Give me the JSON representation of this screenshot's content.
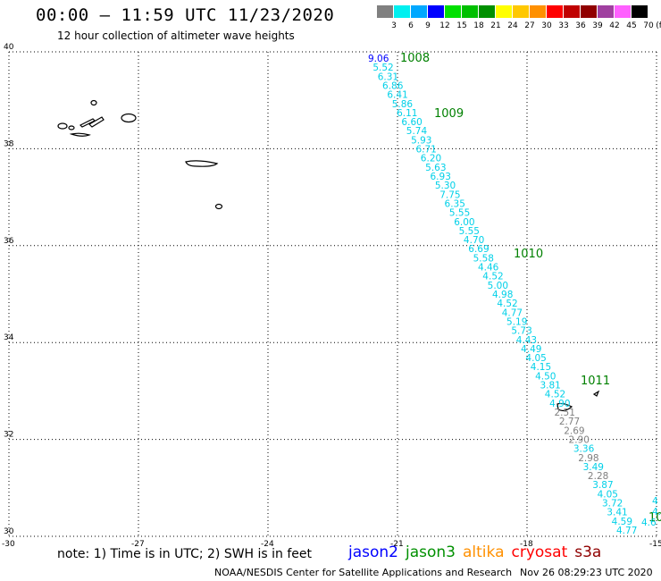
{
  "header": {
    "title": "00:00 – 11:59 UTC 11/23/2020",
    "subtitle": "12 hour collection of altimeter wave heights"
  },
  "colorbar": {
    "unit": "(ft)",
    "items": [
      {
        "label": "3",
        "color": "#808080"
      },
      {
        "label": "6",
        "color": "#00f0f0"
      },
      {
        "label": "9",
        "color": "#00a8ff"
      },
      {
        "label": "12",
        "color": "#0000ff"
      },
      {
        "label": "15",
        "color": "#00e000"
      },
      {
        "label": "18",
        "color": "#00c000"
      },
      {
        "label": "21",
        "color": "#009000"
      },
      {
        "label": "24",
        "color": "#ffff00"
      },
      {
        "label": "27",
        "color": "#ffc800"
      },
      {
        "label": "30",
        "color": "#ff9000"
      },
      {
        "label": "33",
        "color": "#ff0000"
      },
      {
        "label": "36",
        "color": "#c00000"
      },
      {
        "label": "39",
        "color": "#900000"
      },
      {
        "label": "42",
        "color": "#a040a0"
      },
      {
        "label": "45",
        "color": "#ff60ff"
      },
      {
        "label": "70",
        "color": "#000000"
      }
    ]
  },
  "map": {
    "lat_ticks": [
      "40",
      "38",
      "36",
      "34",
      "32",
      "30"
    ],
    "lon_ticks": [
      "-30",
      "-27",
      "-24",
      "-21",
      "-18",
      "-15"
    ],
    "pressure_labels": [
      "1008",
      "1009",
      "1010",
      "1011",
      "10"
    ],
    "wave_heights": [
      {
        "v": "9.06",
        "c": "#0000ff"
      },
      {
        "v": "5.52",
        "c": "#00d0e8"
      },
      {
        "v": "6.31",
        "c": "#00d0e8"
      },
      {
        "v": "6.86",
        "c": "#00d0e8"
      },
      {
        "v": "6.41",
        "c": "#00d0e8"
      },
      {
        "v": "5.86",
        "c": "#00d0e8"
      },
      {
        "v": "6.11",
        "c": "#00d0e8"
      },
      {
        "v": "6.60",
        "c": "#00d0e8"
      },
      {
        "v": "5.74",
        "c": "#00d0e8"
      },
      {
        "v": "5.93",
        "c": "#00d0e8"
      },
      {
        "v": "6.71",
        "c": "#00d0e8"
      },
      {
        "v": "6.20",
        "c": "#00d0e8"
      },
      {
        "v": "5.63",
        "c": "#00d0e8"
      },
      {
        "v": "6.93",
        "c": "#00d0e8"
      },
      {
        "v": "5.30",
        "c": "#00d0e8"
      },
      {
        "v": "7.75",
        "c": "#00d0e8"
      },
      {
        "v": "6.35",
        "c": "#00d0e8"
      },
      {
        "v": "5.55",
        "c": "#00d0e8"
      },
      {
        "v": "6.00",
        "c": "#00d0e8"
      },
      {
        "v": "5.55",
        "c": "#00d0e8"
      },
      {
        "v": "4.70",
        "c": "#00d0e8"
      },
      {
        "v": "6.69",
        "c": "#00d0e8"
      },
      {
        "v": "5.58",
        "c": "#00d0e8"
      },
      {
        "v": "4.46",
        "c": "#00d0e8"
      },
      {
        "v": "4.52",
        "c": "#00d0e8"
      },
      {
        "v": "5.00",
        "c": "#00d0e8"
      },
      {
        "v": "4.98",
        "c": "#00d0e8"
      },
      {
        "v": "4.52",
        "c": "#00d0e8"
      },
      {
        "v": "4.77",
        "c": "#00d0e8"
      },
      {
        "v": "5.19",
        "c": "#00d0e8"
      },
      {
        "v": "5.73",
        "c": "#00d0e8"
      },
      {
        "v": "4.43",
        "c": "#00d0e8"
      },
      {
        "v": "4.49",
        "c": "#00d0e8"
      },
      {
        "v": "4.05",
        "c": "#00d0e8"
      },
      {
        "v": "4.15",
        "c": "#00d0e8"
      },
      {
        "v": "4.50",
        "c": "#00d0e8"
      },
      {
        "v": "3.81",
        "c": "#00d0e8"
      },
      {
        "v": "4.52",
        "c": "#00d0e8"
      },
      {
        "v": "4.90",
        "c": "#00d0e8"
      },
      {
        "v": "2.51",
        "c": "#808080"
      },
      {
        "v": "2.77",
        "c": "#808080"
      },
      {
        "v": "2.69",
        "c": "#808080"
      },
      {
        "v": "2.90",
        "c": "#808080"
      },
      {
        "v": "3.36",
        "c": "#00d0e8"
      },
      {
        "v": "2.98",
        "c": "#808080"
      },
      {
        "v": "3.49",
        "c": "#00d0e8"
      },
      {
        "v": "2.28",
        "c": "#808080"
      },
      {
        "v": "3.87",
        "c": "#00d0e8"
      },
      {
        "v": "4.05",
        "c": "#00d0e8"
      },
      {
        "v": "3.72",
        "c": "#00d0e8"
      },
      {
        "v": "3.41",
        "c": "#00d0e8"
      },
      {
        "v": "4.59",
        "c": "#00d0e8"
      },
      {
        "v": "4.77",
        "c": "#00d0e8"
      },
      {
        "v": "4.6",
        "c": "#00d0e8"
      },
      {
        "v": "4.",
        "c": "#00d0e8"
      },
      {
        "v": "4",
        "c": "#00d0e8"
      }
    ]
  },
  "note": "note: 1) Time is in UTC; 2) SWH is in feet",
  "satellites": [
    {
      "name": "jason2",
      "color": "#0000ff"
    },
    {
      "name": "jason3",
      "color": "#009000"
    },
    {
      "name": "altika",
      "color": "#ff9000"
    },
    {
      "name": "cryosat",
      "color": "#ff0000"
    },
    {
      "name": "s3a",
      "color": "#900000"
    }
  ],
  "footer": {
    "credit": "NOAA/NESDIS Center for Satellite Applications and Research",
    "timestamp": "Nov 26 08:29:23 UTC 2020"
  }
}
